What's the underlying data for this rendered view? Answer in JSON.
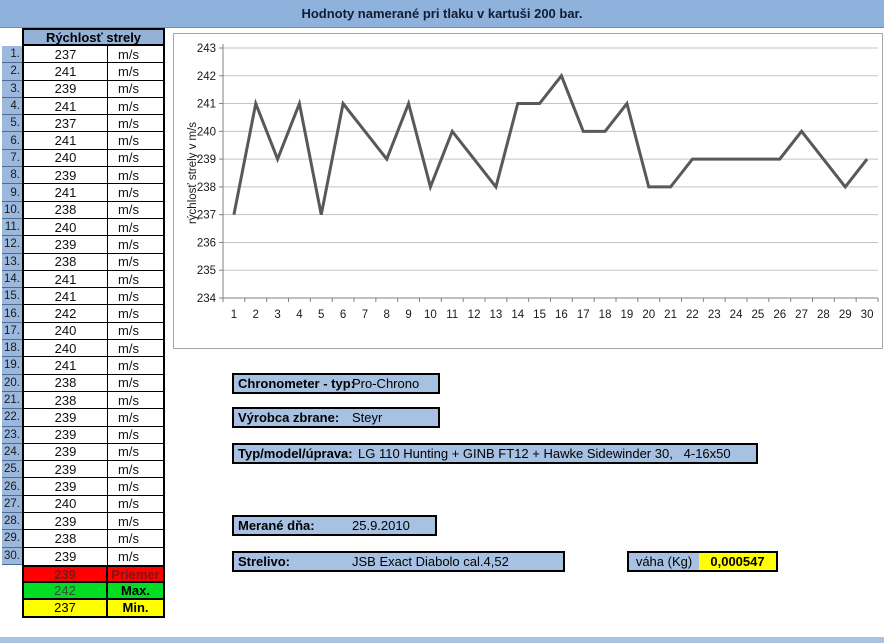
{
  "title": "Hodnoty namerané pri tlaku v kartuši 200 bar.",
  "table": {
    "header": "Rýchlosť strely",
    "unit": "m/s",
    "values": [
      237,
      241,
      239,
      241,
      237,
      241,
      240,
      239,
      241,
      238,
      240,
      239,
      238,
      241,
      241,
      242,
      240,
      240,
      241,
      238,
      238,
      239,
      239,
      239,
      239,
      239,
      240,
      239,
      238,
      239
    ],
    "summary": [
      {
        "label": "Priemer",
        "value": "239",
        "bg": "#ff0000",
        "value_color": "#7d1616",
        "label_color": "#7d1616",
        "value_bold": true
      },
      {
        "label": "Max.",
        "value": "242",
        "bg": "#00dd22",
        "value_color": "#3c4a3c",
        "label_color": "#000000",
        "value_bold": false
      },
      {
        "label": "Min.",
        "value": "237",
        "bg": "#ffff00",
        "value_color": "#000000",
        "label_color": "#000000",
        "value_bold": false
      }
    ]
  },
  "chart_data": {
    "type": "line",
    "x": [
      1,
      2,
      3,
      4,
      5,
      6,
      7,
      8,
      9,
      10,
      11,
      12,
      13,
      14,
      15,
      16,
      17,
      18,
      19,
      20,
      21,
      22,
      23,
      24,
      25,
      26,
      27,
      28,
      29,
      30
    ],
    "values": [
      237,
      241,
      239,
      241,
      237,
      241,
      240,
      239,
      241,
      238,
      240,
      239,
      238,
      241,
      241,
      242,
      240,
      240,
      241,
      238,
      238,
      239,
      239,
      239,
      239,
      239,
      240,
      239,
      238,
      239
    ],
    "title": "",
    "xlabel": "",
    "ylabel": "rýchlosť strely v m/s",
    "ylim": [
      234,
      243
    ],
    "yticks": [
      234,
      235,
      236,
      237,
      238,
      239,
      240,
      241,
      242,
      243
    ],
    "grid": true,
    "legend": "none",
    "line_color": "#595959",
    "grid_color": "#c3c3c3",
    "axis_color": "#808080"
  },
  "fields": [
    {
      "key": "chronometer",
      "label": "Chronometer - typ:",
      "value": "Pro-Chrono"
    },
    {
      "key": "vyrobca-zbrane",
      "label": "Výrobca zbrane:",
      "value": "Steyr"
    },
    {
      "key": "typ-model-uprava",
      "label": "Typ/model/úprava:",
      "value": "LG 110 Hunting + GINB FT12 + Hawke Sidewinder 30,   4-16x50"
    },
    {
      "key": "merane-dna",
      "label": "Merané dňa:",
      "value": "25.9.2010"
    },
    {
      "key": "strelivo",
      "label": "Strelivo:",
      "value": "JSB Exact Diabolo cal.4,52"
    }
  ],
  "weight": {
    "label": "váha (Kg)",
    "value": "0,000547"
  }
}
